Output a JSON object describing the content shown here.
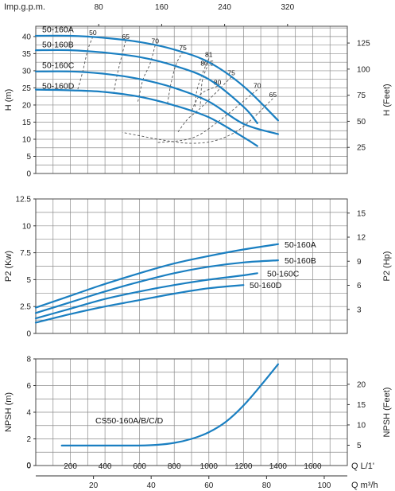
{
  "chart_data": [
    {
      "type": "line",
      "name": "head",
      "top_axis_label": "Imp.g.p.m.",
      "top_axis_ticks": [
        80,
        160,
        240,
        320
      ],
      "ylabel": "H (m)",
      "y2label": "H (Feet)",
      "xlim": [
        0,
        1800
      ],
      "ylim": [
        0,
        43
      ],
      "yticks": [
        0,
        5,
        10,
        15,
        20,
        25,
        30,
        35,
        40
      ],
      "y2ticks": [
        25,
        50,
        75,
        100,
        125
      ],
      "series": [
        {
          "name": "50-160A",
          "x": [
            0,
            200,
            400,
            600,
            800,
            1000,
            1200,
            1400
          ],
          "y": [
            40.2,
            40.2,
            39.6,
            38.4,
            36.2,
            32.5,
            25.5,
            15.5
          ]
        },
        {
          "name": "50-160B",
          "x": [
            0,
            200,
            400,
            600,
            800,
            1000,
            1200,
            1280
          ],
          "y": [
            36,
            36,
            35.3,
            34,
            31.5,
            27.5,
            19.5,
            14.7
          ]
        },
        {
          "name": "50-160C",
          "x": [
            0,
            200,
            400,
            600,
            800,
            1000,
            1200,
            1400
          ],
          "y": [
            29.8,
            29.8,
            29.1,
            27.6,
            25,
            21,
            14.5,
            11.5
          ]
        },
        {
          "name": "50-160D",
          "x": [
            0,
            200,
            400,
            600,
            800,
            1000,
            1200,
            1280
          ],
          "y": [
            24.5,
            24.3,
            23.8,
            22.4,
            19.9,
            16.4,
            10.6,
            8
          ]
        }
      ],
      "efficiency": [
        {
          "label": "50",
          "x": [
            330,
            300,
            270,
            240
          ],
          "y": [
            40,
            36,
            29.5,
            24.1
          ]
        },
        {
          "label": "65",
          "x": [
            520,
            500,
            470,
            450
          ],
          "y": [
            38.8,
            35,
            28.8,
            23.3
          ]
        },
        {
          "label": "70",
          "x": [
            690,
            660,
            620,
            590
          ],
          "y": [
            37.5,
            32,
            27.5,
            21
          ]
        },
        {
          "label": "75",
          "x": [
            850,
            810,
            780,
            760
          ],
          "y": [
            35.6,
            31.8,
            26,
            20
          ]
        },
        {
          "label": "81",
          "x": [
            1000,
            960,
            930,
            920
          ],
          "y": [
            33.6,
            28.8,
            24,
            19
          ]
        },
        {
          "label": "80.5",
          "x": [
            990,
            980,
            960,
            950
          ],
          "y": [
            31,
            30,
            26.5,
            19.5
          ]
        },
        {
          "label": "80",
          "x": [
            1050,
            960,
            920,
            900
          ],
          "y": [
            25.5,
            23.5,
            20.5,
            18
          ]
        },
        {
          "label": "75",
          "x": [
            1130,
            960,
            880,
            820
          ],
          "y": [
            28.2,
            19.5,
            16,
            12
          ]
        },
        {
          "label": "70",
          "x": [
            1280,
            1050,
            900,
            700
          ],
          "y": [
            24.5,
            15,
            10.3,
            9
          ]
        },
        {
          "label": "65",
          "x": [
            1370,
            1150,
            900,
            500
          ],
          "y": [
            21.9,
            12,
            8.8,
            12
          ]
        }
      ]
    },
    {
      "type": "line",
      "name": "power",
      "ylabel": "P2 (Kw)",
      "y2label": "P2 (Hp)",
      "xlim": [
        0,
        1800
      ],
      "ylim": [
        0,
        12.5
      ],
      "yticks": [
        0,
        2.5,
        5,
        7.5,
        10,
        12.5
      ],
      "y2ticks": [
        3,
        6,
        9,
        12,
        15
      ],
      "series": [
        {
          "name": "50-160A",
          "x": [
            0,
            200,
            400,
            600,
            800,
            1000,
            1200,
            1400
          ],
          "y": [
            2.4,
            3.5,
            4.6,
            5.6,
            6.5,
            7.2,
            7.8,
            8.3
          ]
        },
        {
          "name": "50-160B",
          "x": [
            0,
            200,
            400,
            600,
            800,
            1000,
            1200,
            1400
          ],
          "y": [
            1.9,
            2.9,
            3.9,
            4.8,
            5.6,
            6.2,
            6.6,
            6.8
          ]
        },
        {
          "name": "50-160C",
          "x": [
            0,
            200,
            400,
            600,
            800,
            1000,
            1200,
            1280
          ],
          "y": [
            1.4,
            2.3,
            3.2,
            3.9,
            4.5,
            5,
            5.4,
            5.6
          ]
        },
        {
          "name": "50-160D",
          "x": [
            0,
            200,
            400,
            600,
            800,
            1000,
            1200
          ],
          "y": [
            1,
            1.8,
            2.5,
            3.1,
            3.7,
            4.2,
            4.5
          ]
        }
      ]
    },
    {
      "type": "line",
      "name": "npsh",
      "ylabel": "NPSH (m)",
      "y2label": "NPSH (Feet)",
      "xlabel": "Q L/1'",
      "x2label": "Q m³/h",
      "xlim": [
        0,
        1800
      ],
      "ylim": [
        0,
        8
      ],
      "yticks": [
        0,
        2,
        4,
        6,
        8
      ],
      "y2ticks": [
        5,
        10,
        15,
        20
      ],
      "xticks": [
        200,
        400,
        600,
        800,
        1000,
        1200,
        1400,
        1600
      ],
      "x2ticks": [
        20,
        40,
        60,
        80,
        100
      ],
      "annotation": "CS50-160A/B/C/D",
      "series": [
        {
          "name": "CS50-160A/B/C/D",
          "x": [
            150,
            400,
            600,
            700,
            800,
            900,
            1000,
            1100,
            1200,
            1300,
            1400
          ],
          "y": [
            1.5,
            1.5,
            1.5,
            1.55,
            1.7,
            2,
            2.5,
            3.3,
            4.5,
            6,
            7.6
          ]
        }
      ]
    }
  ],
  "series_labels": {
    "head": [
      "50-160A",
      "50-160B",
      "50-160C",
      "50-160D"
    ],
    "power": [
      "50-160A",
      "50-160B",
      "50-160C",
      "50-160D"
    ]
  },
  "colors": {
    "curve": "#1a7fc1",
    "grid": "#8c8c8c",
    "efficiency": "#555555"
  }
}
